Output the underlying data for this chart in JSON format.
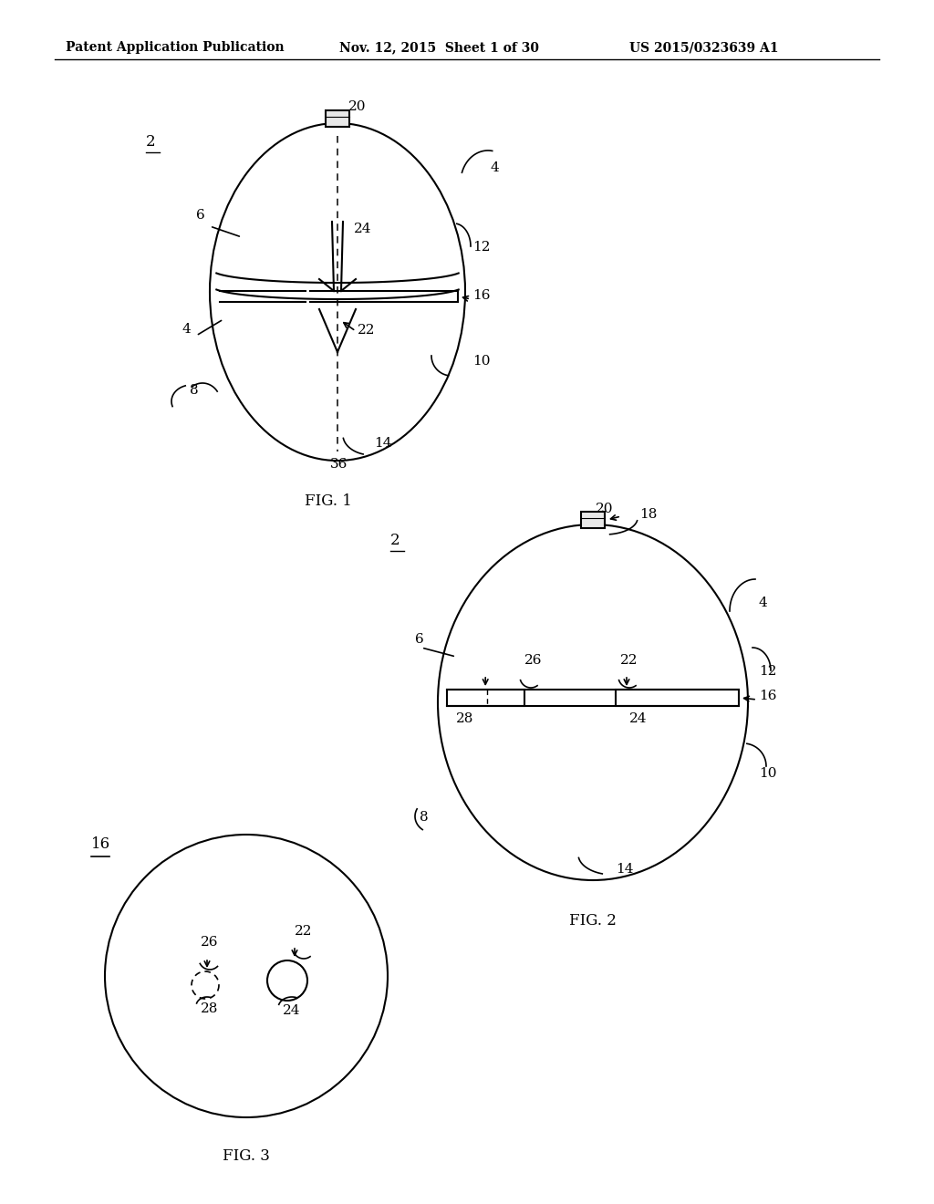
{
  "background_color": "#ffffff",
  "header_text": "Patent Application Publication",
  "header_date": "Nov. 12, 2015  Sheet 1 of 30",
  "header_patent": "US 2015/0323639 A1",
  "fig1_label": "FIG. 1",
  "fig2_label": "FIG. 2",
  "fig3_label": "FIG. 3"
}
